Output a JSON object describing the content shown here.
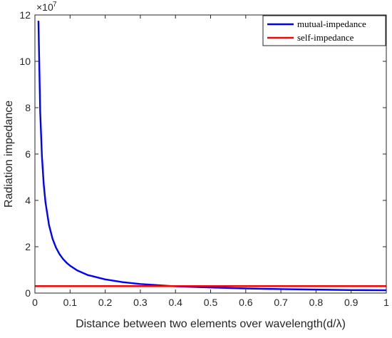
{
  "chart_data": {
    "type": "line",
    "title": "",
    "xlabel": "Distance between two elements over wavelength(d/λ)",
    "ylabel": "Radiation impedance",
    "y_exponent_label": "×10",
    "y_exponent_power": "7",
    "xlim": [
      0,
      1
    ],
    "ylim": [
      0,
      12
    ],
    "x_ticks": [
      0,
      0.1,
      0.2,
      0.3,
      0.4,
      0.5,
      0.6,
      0.7,
      0.8,
      0.9,
      1
    ],
    "x_tick_labels": [
      "0",
      "0.1",
      "0.2",
      "0.3",
      "0.4",
      "0.5",
      "0.6",
      "0.7",
      "0.8",
      "0.9",
      "1"
    ],
    "y_ticks": [
      0,
      2,
      4,
      6,
      8,
      10,
      12
    ],
    "y_tick_labels": [
      "0",
      "2",
      "4",
      "6",
      "8",
      "10",
      "12"
    ],
    "grid": false,
    "legend_position": "top-right",
    "series": [
      {
        "name": "mutual-impedance",
        "color": "#0000ff",
        "x": [
          0.01,
          0.015,
          0.02,
          0.025,
          0.03,
          0.04,
          0.05,
          0.06,
          0.07,
          0.08,
          0.09,
          0.1,
          0.12,
          0.15,
          0.2,
          0.25,
          0.3,
          0.35,
          0.4,
          0.5,
          0.6,
          0.7,
          0.8,
          0.9,
          1.0
        ],
        "y": [
          11.75,
          7.83,
          5.88,
          4.7,
          3.92,
          2.94,
          2.35,
          1.96,
          1.68,
          1.47,
          1.31,
          1.18,
          0.98,
          0.78,
          0.59,
          0.47,
          0.39,
          0.34,
          0.29,
          0.24,
          0.2,
          0.17,
          0.15,
          0.13,
          0.12
        ]
      },
      {
        "name": "self-impedance",
        "color": "#ff0000",
        "x": [
          0,
          1
        ],
        "y": [
          0.3,
          0.3
        ]
      }
    ]
  }
}
